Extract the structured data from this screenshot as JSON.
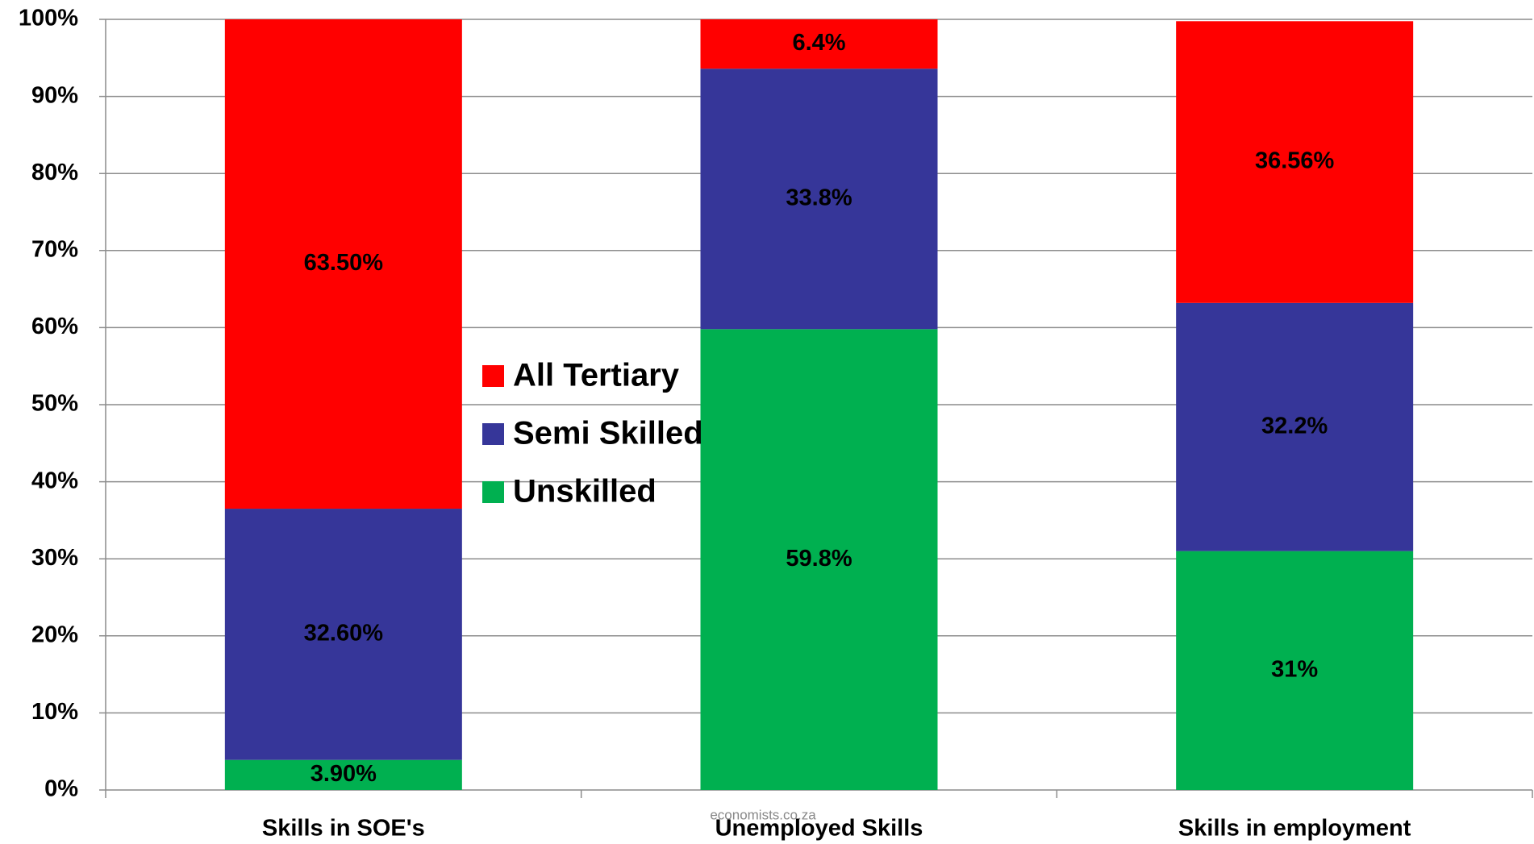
{
  "chart_data": {
    "type": "stacked_bar",
    "categories": [
      "Skills in SOE's",
      "Unemployed Skills",
      "Skills in employment"
    ],
    "series": [
      {
        "name": "Unskilled",
        "color": "#00b050",
        "values": [
          3.9,
          59.8,
          31
        ],
        "value_labels": [
          "3.90%",
          "59.8%",
          "31%"
        ]
      },
      {
        "name": "Semi Skilled",
        "color": "#363699",
        "values": [
          32.6,
          33.8,
          32.2
        ],
        "value_labels": [
          "32.60%",
          "33.8%",
          "32.2%"
        ]
      },
      {
        "name": "All Tertiary",
        "color": "#ff0000",
        "values": [
          63.5,
          6.4,
          36.56
        ],
        "value_labels": [
          "63.50%",
          "6.4%",
          "36.56%"
        ]
      }
    ],
    "ylim": [
      0,
      100
    ],
    "yticks": [
      {
        "value": 0,
        "label": "0%"
      },
      {
        "value": 10,
        "label": "10%"
      },
      {
        "value": 20,
        "label": "20%"
      },
      {
        "value": 30,
        "label": "30%"
      },
      {
        "value": 40,
        "label": "40%"
      },
      {
        "value": 50,
        "label": "50%"
      },
      {
        "value": 60,
        "label": "60%"
      },
      {
        "value": 70,
        "label": "70%"
      },
      {
        "value": 80,
        "label": "80%"
      },
      {
        "value": 90,
        "label": "90%"
      },
      {
        "value": 100,
        "label": "100%"
      }
    ],
    "grid": true,
    "legend": "center-left",
    "annotation": "economists.co.za"
  }
}
